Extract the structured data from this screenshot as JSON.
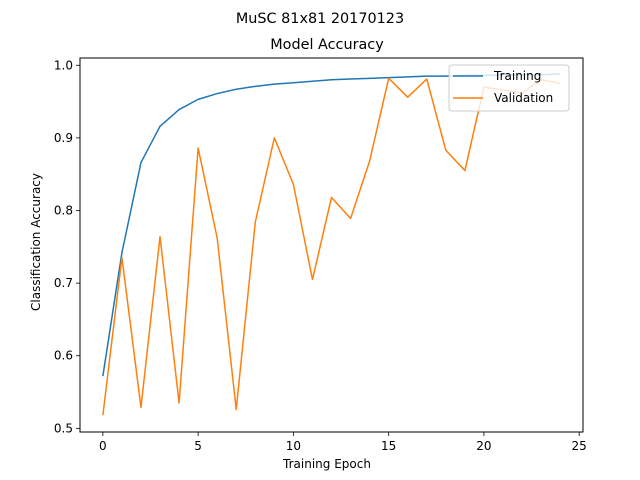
{
  "chart_data": {
    "type": "line",
    "suptitle": "MuSC 81x81 20170123",
    "title": "Model Accuracy",
    "xlabel": "Training Epoch",
    "ylabel": "Classification Accuracy",
    "xlim": [
      -1.2,
      25.2
    ],
    "ylim": [
      0.495,
      1.01
    ],
    "xticks": [
      0,
      5,
      10,
      15,
      20,
      25
    ],
    "yticks": [
      0.5,
      0.6,
      0.7,
      0.8,
      0.9,
      1.0
    ],
    "xtick_labels": [
      "0",
      "5",
      "10",
      "15",
      "20",
      "25"
    ],
    "ytick_labels": [
      "0.5",
      "0.6",
      "0.7",
      "0.8",
      "0.9",
      "1.0"
    ],
    "grid": false,
    "legend_position": "upper right",
    "x": [
      0,
      1,
      2,
      3,
      4,
      5,
      6,
      7,
      8,
      9,
      10,
      11,
      12,
      13,
      14,
      15,
      16,
      17,
      18,
      19,
      20,
      21,
      22,
      23,
      24
    ],
    "series": [
      {
        "name": "Training",
        "color": "#1f77b4",
        "values": [
          0.572,
          0.742,
          0.866,
          0.916,
          0.939,
          0.953,
          0.961,
          0.967,
          0.971,
          0.974,
          0.976,
          0.978,
          0.98,
          0.981,
          0.982,
          0.983,
          0.984,
          0.985,
          0.985,
          0.986,
          0.986,
          0.987,
          0.987,
          0.987,
          0.988
        ]
      },
      {
        "name": "Validation",
        "color": "#ff7f0e",
        "values": [
          0.518,
          0.735,
          0.529,
          0.764,
          0.535,
          0.886,
          0.762,
          0.526,
          0.784,
          0.9,
          0.836,
          0.705,
          0.818,
          0.789,
          0.868,
          0.982,
          0.956,
          0.981,
          0.883,
          0.855,
          0.97,
          0.966,
          0.962,
          0.98,
          0.975
        ]
      }
    ]
  }
}
